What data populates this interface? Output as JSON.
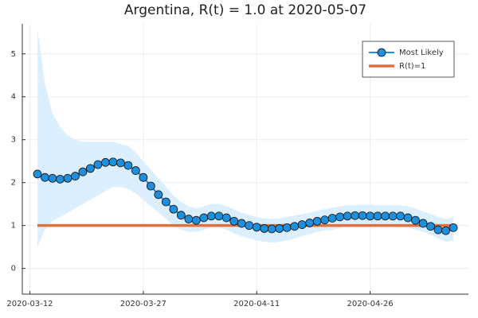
{
  "chart_data": {
    "type": "line",
    "title": "Argentina, R(t) = 1.0 at 2020-05-07",
    "x": [
      "2020-03-13",
      "2020-03-14",
      "2020-03-15",
      "2020-03-16",
      "2020-03-17",
      "2020-03-18",
      "2020-03-19",
      "2020-03-20",
      "2020-03-21",
      "2020-03-22",
      "2020-03-23",
      "2020-03-24",
      "2020-03-25",
      "2020-03-26",
      "2020-03-27",
      "2020-03-28",
      "2020-03-29",
      "2020-03-30",
      "2020-03-31",
      "2020-04-01",
      "2020-04-02",
      "2020-04-03",
      "2020-04-04",
      "2020-04-05",
      "2020-04-06",
      "2020-04-07",
      "2020-04-08",
      "2020-04-09",
      "2020-04-10",
      "2020-04-11",
      "2020-04-12",
      "2020-04-13",
      "2020-04-14",
      "2020-04-15",
      "2020-04-16",
      "2020-04-17",
      "2020-04-18",
      "2020-04-19",
      "2020-04-20",
      "2020-04-21",
      "2020-04-22",
      "2020-04-23",
      "2020-04-24",
      "2020-04-25",
      "2020-04-26",
      "2020-04-27",
      "2020-04-28",
      "2020-04-29",
      "2020-04-30",
      "2020-05-01",
      "2020-05-02",
      "2020-05-03",
      "2020-05-04",
      "2020-05-05",
      "2020-05-06",
      "2020-05-07"
    ],
    "series": [
      {
        "name": "Most Likely",
        "color": "#1e8fdc",
        "values": [
          2.2,
          2.12,
          2.1,
          2.08,
          2.1,
          2.15,
          2.25,
          2.33,
          2.42,
          2.47,
          2.48,
          2.46,
          2.4,
          2.28,
          2.12,
          1.92,
          1.72,
          1.55,
          1.38,
          1.24,
          1.15,
          1.12,
          1.18,
          1.22,
          1.22,
          1.18,
          1.1,
          1.05,
          1.0,
          0.96,
          0.93,
          0.92,
          0.93,
          0.95,
          0.98,
          1.02,
          1.06,
          1.1,
          1.13,
          1.17,
          1.2,
          1.22,
          1.23,
          1.23,
          1.22,
          1.22,
          1.22,
          1.22,
          1.22,
          1.18,
          1.12,
          1.05,
          0.98,
          0.9,
          0.88,
          0.95
        ]
      },
      {
        "name": "R(t)=1",
        "color": "#e0703f",
        "x": [
          "2020-03-13",
          "2020-05-07"
        ],
        "values": [
          1,
          1
        ]
      }
    ],
    "band": {
      "color": "#dcefff",
      "upper": [
        5.6,
        4.3,
        3.6,
        3.3,
        3.1,
        3.0,
        2.95,
        2.95,
        2.95,
        2.95,
        2.95,
        2.9,
        2.85,
        2.7,
        2.5,
        2.3,
        2.1,
        1.9,
        1.7,
        1.55,
        1.45,
        1.4,
        1.45,
        1.5,
        1.5,
        1.45,
        1.38,
        1.3,
        1.25,
        1.2,
        1.17,
        1.15,
        1.17,
        1.2,
        1.23,
        1.27,
        1.3,
        1.35,
        1.38,
        1.42,
        1.45,
        1.47,
        1.48,
        1.48,
        1.48,
        1.47,
        1.47,
        1.47,
        1.47,
        1.45,
        1.4,
        1.33,
        1.27,
        1.2,
        1.15,
        1.2
      ],
      "lower": [
        0.5,
        0.9,
        1.1,
        1.2,
        1.3,
        1.4,
        1.5,
        1.6,
        1.7,
        1.8,
        1.9,
        1.9,
        1.85,
        1.75,
        1.6,
        1.45,
        1.3,
        1.15,
        1.0,
        0.9,
        0.85,
        0.85,
        0.9,
        0.95,
        0.95,
        0.9,
        0.82,
        0.75,
        0.7,
        0.65,
        0.62,
        0.6,
        0.62,
        0.65,
        0.7,
        0.75,
        0.8,
        0.85,
        0.88,
        0.9,
        0.95,
        0.97,
        0.98,
        0.98,
        0.97,
        0.97,
        0.97,
        0.97,
        0.95,
        0.95,
        0.9,
        0.85,
        0.78,
        0.7,
        0.62,
        0.65
      ]
    },
    "xlim": [
      "2020-03-11",
      "2020-05-09"
    ],
    "xticks": [
      "2020-03-12",
      "2020-03-27",
      "2020-04-11",
      "2020-04-26"
    ],
    "ylim": [
      -0.6,
      5.7
    ],
    "yticks": [
      0,
      1,
      2,
      3,
      4,
      5
    ],
    "grid": true,
    "legend": "top-right"
  }
}
